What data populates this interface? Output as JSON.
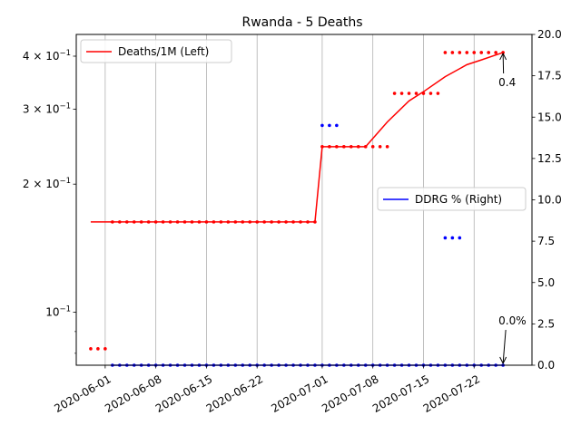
{
  "chart_data": {
    "type": "line",
    "title": "Rwanda - 5 Deaths",
    "left_axis": {
      "scale": "log",
      "ylim": [
        0.075,
        0.45
      ],
      "ticks": [
        {
          "value": 0.1,
          "label": "10",
          "exp": "−1",
          "prefix": ""
        },
        {
          "value": 0.2,
          "label": "10",
          "exp": "−1",
          "prefix": "2 × "
        },
        {
          "value": 0.3,
          "label": "10",
          "exp": "−1",
          "prefix": "3 × "
        },
        {
          "value": 0.4,
          "label": "10",
          "exp": "−1",
          "prefix": "4 × "
        }
      ],
      "minor_ticks": [
        0.08,
        0.09
      ]
    },
    "right_axis": {
      "scale": "linear",
      "ylim": [
        0,
        20
      ],
      "ticks": [
        {
          "value": 0,
          "label": "0.0"
        },
        {
          "value": 2.5,
          "label": "2.5"
        },
        {
          "value": 5,
          "label": "5.0"
        },
        {
          "value": 7.5,
          "label": "7.5"
        },
        {
          "value": 10,
          "label": "10.0"
        },
        {
          "value": 12.5,
          "label": "12.5"
        },
        {
          "value": 15,
          "label": "15.0"
        },
        {
          "value": 17.5,
          "label": "17.5"
        },
        {
          "value": 20,
          "label": "20.0"
        }
      ]
    },
    "x_axis": {
      "start": "2020-05-28",
      "end": "2020-07-30",
      "ticks": [
        {
          "date": "2020-06-01",
          "label": "2020-06-01"
        },
        {
          "date": "2020-06-08",
          "label": "2020-06-08"
        },
        {
          "date": "2020-06-15",
          "label": "2020-06-15"
        },
        {
          "date": "2020-06-22",
          "label": "2020-06-22"
        },
        {
          "date": "2020-07-01",
          "label": "2020-07-01"
        },
        {
          "date": "2020-07-08",
          "label": "2020-07-08"
        },
        {
          "date": "2020-07-15",
          "label": "2020-07-15"
        },
        {
          "date": "2020-07-22",
          "label": "2020-07-22"
        }
      ],
      "grid": true
    },
    "series": [
      {
        "name": "Deaths/1M (Left)",
        "axis": "left",
        "color": "#ff0000",
        "style": "line",
        "points": [
          [
            "2020-05-30",
            0.163
          ],
          [
            "2020-06-30",
            0.163
          ],
          [
            "2020-07-01",
            0.245
          ],
          [
            "2020-07-07",
            0.245
          ],
          [
            "2020-07-10",
            0.28
          ],
          [
            "2020-07-13",
            0.314
          ],
          [
            "2020-07-15",
            0.33
          ],
          [
            "2020-07-18",
            0.358
          ],
          [
            "2020-07-21",
            0.382
          ],
          [
            "2020-07-23",
            0.392
          ],
          [
            "2020-07-26",
            0.408
          ]
        ]
      },
      {
        "name": "Deaths/1M daily dots",
        "axis": "left",
        "color": "#ff0000",
        "style": "dots",
        "groups": [
          {
            "from": "2020-05-30",
            "to": "2020-06-01",
            "value": 0.082
          },
          {
            "from": "2020-06-02",
            "to": "2020-06-30",
            "value": 0.163
          },
          {
            "from": "2020-07-01",
            "to": "2020-07-10",
            "value": 0.245
          },
          {
            "from": "2020-07-11",
            "to": "2020-07-17",
            "value": 0.327
          },
          {
            "from": "2020-07-18",
            "to": "2020-07-26",
            "value": 0.408
          }
        ]
      },
      {
        "name": "DDRG % (Right)",
        "axis": "right",
        "color": "#0000ff",
        "style": "line",
        "points": [
          [
            "2020-06-02",
            0
          ],
          [
            "2020-07-26",
            0
          ]
        ]
      },
      {
        "name": "DDRG % daily dots",
        "axis": "right",
        "color": "#0000ff",
        "style": "dots",
        "groups": [
          {
            "from": "2020-06-02",
            "to": "2020-07-26",
            "value": 0
          },
          {
            "from": "2020-07-01",
            "to": "2020-07-03",
            "value": 14.5
          },
          {
            "from": "2020-07-18",
            "to": "2020-07-20",
            "value": 7.7
          }
        ]
      }
    ],
    "legends": [
      {
        "label": "Deaths/1M (Left)",
        "color": "#ff0000",
        "placement": "upper-left"
      },
      {
        "label": "DDRG % (Right)",
        "color": "#0000ff",
        "placement": "center-right"
      }
    ],
    "annotations": [
      {
        "text": "0.4",
        "date": "2020-07-26",
        "axis": "left",
        "value": 0.408
      },
      {
        "text": "0.0%",
        "date": "2020-07-26",
        "axis": "right",
        "value": 0
      }
    ]
  }
}
